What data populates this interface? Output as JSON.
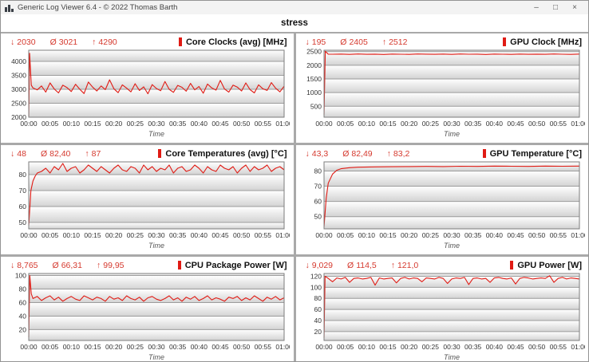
{
  "window": {
    "title": "Generic Log Viewer 6.4 - © 2022 Thomas Barth",
    "controls": {
      "minimize": "–",
      "maximize": "□",
      "close": "×"
    }
  },
  "tab": {
    "label": "stress"
  },
  "symbols": {
    "min": "↓",
    "avg": "Ø",
    "max": "↑"
  },
  "colors": {
    "accent_red": "#d5392e",
    "line_red": "#e01b14",
    "grid_line": "#9c9c9c",
    "band_top": "#ffffff",
    "band_bottom": "#d3d3d3",
    "divider": "#a9a9a9",
    "plot_border": "#7d7d7d"
  },
  "x_axis": {
    "tick_minutes": [
      0,
      5,
      10,
      15,
      20,
      25,
      30,
      35,
      40,
      45,
      50,
      55,
      60
    ],
    "tick_labels": [
      "00:00",
      "00:05",
      "00:10",
      "00:15",
      "00:20",
      "00:25",
      "00:30",
      "00:35",
      "00:40",
      "00:45",
      "00:50",
      "00:55",
      "01:00"
    ],
    "title": "Time"
  },
  "panels": [
    {
      "id": "core-clocks",
      "title": "Core Clocks (avg) [MHz]",
      "stats": {
        "min": "2030",
        "avg": "3021",
        "max": "4290"
      },
      "chart_data": {
        "type": "line",
        "ylim": [
          2000,
          4400
        ],
        "yticks": [
          2000,
          2500,
          3000,
          3500,
          4000
        ],
        "ytick_labels": [
          "2000",
          "2500",
          "3000",
          "3500",
          "4000"
        ],
        "x_minutes": [
          0,
          0.2,
          0.6,
          1,
          2,
          3,
          4,
          5,
          6,
          7,
          8,
          9,
          10,
          11,
          12,
          13,
          14,
          15,
          16,
          17,
          18,
          19,
          20,
          21,
          22,
          23,
          24,
          25,
          26,
          27,
          28,
          29,
          30,
          31,
          32,
          33,
          34,
          35,
          36,
          37,
          38,
          39,
          40,
          41,
          42,
          43,
          44,
          45,
          46,
          47,
          48,
          49,
          50,
          51,
          52,
          53,
          54,
          55,
          56,
          57,
          58,
          59,
          60
        ],
        "y": [
          2030,
          4290,
          3150,
          3050,
          2980,
          3120,
          2900,
          3230,
          3010,
          2870,
          3150,
          3060,
          2920,
          3180,
          3000,
          2850,
          3260,
          3080,
          2940,
          3120,
          2990,
          3340,
          3020,
          2880,
          3160,
          3040,
          2910,
          3200,
          2960,
          3090,
          2840,
          3170,
          3030,
          2950,
          3280,
          3000,
          2890,
          3140,
          3070,
          2930,
          3210,
          2980,
          3100,
          2860,
          3190,
          3050,
          2970,
          3320,
          3010,
          2900,
          3150,
          3080,
          2940,
          3230,
          2990,
          2870,
          3160,
          3020,
          2960,
          3240,
          3040,
          2910,
          3110
        ]
      }
    },
    {
      "id": "gpu-clock",
      "title": "GPU Clock [MHz]",
      "stats": {
        "min": "195",
        "avg": "2405",
        "max": "2512"
      },
      "chart_data": {
        "type": "line",
        "ylim": [
          100,
          2550
        ],
        "yticks": [
          500,
          1000,
          1500,
          2000,
          2500
        ],
        "ytick_labels": [
          "500",
          "1000",
          "1500",
          "2000",
          "2500"
        ],
        "x_minutes": [
          0,
          0.3,
          1,
          2,
          4,
          6,
          8,
          10,
          12,
          14,
          16,
          18,
          20,
          22,
          24,
          26,
          28,
          30,
          32,
          34,
          36,
          38,
          40,
          42,
          44,
          46,
          48,
          50,
          52,
          54,
          56,
          58,
          60
        ],
        "y": [
          195,
          2512,
          2405,
          2405,
          2410,
          2398,
          2412,
          2402,
          2408,
          2396,
          2411,
          2404,
          2399,
          2413,
          2406,
          2400,
          2409,
          2397,
          2412,
          2403,
          2407,
          2395,
          2410,
          2405,
          2398,
          2411,
          2402,
          2408,
          2400,
          2412,
          2404,
          2397,
          2409
        ]
      }
    },
    {
      "id": "core-temps",
      "title": "Core Temperatures (avg) [°C]",
      "stats": {
        "min": "48",
        "avg": "82,40",
        "max": "87"
      },
      "chart_data": {
        "type": "line",
        "ylim": [
          46,
          88
        ],
        "yticks": [
          50,
          60,
          70,
          80
        ],
        "ytick_labels": [
          "50",
          "60",
          "70",
          "80"
        ],
        "x_minutes": [
          0,
          0.5,
          1,
          1.5,
          2,
          3,
          4,
          5,
          6,
          7,
          8,
          9,
          10,
          11,
          12,
          13,
          14,
          15,
          16,
          17,
          18,
          19,
          20,
          21,
          22,
          23,
          24,
          25,
          26,
          27,
          28,
          29,
          30,
          31,
          32,
          33,
          34,
          35,
          36,
          37,
          38,
          39,
          40,
          41,
          42,
          43,
          44,
          45,
          46,
          47,
          48,
          49,
          50,
          51,
          52,
          53,
          54,
          55,
          56,
          57,
          58,
          59,
          60
        ],
        "y": [
          48,
          70,
          76,
          79,
          81,
          82,
          84,
          81,
          85,
          83,
          87,
          82,
          84,
          85,
          81,
          83,
          86,
          84,
          82,
          85,
          83,
          81,
          84,
          86,
          83,
          82,
          85,
          84,
          81,
          86,
          83,
          85,
          82,
          84,
          83,
          86,
          81,
          84,
          85,
          82,
          83,
          86,
          84,
          81,
          85,
          83,
          82,
          86,
          84,
          83,
          85,
          81,
          84,
          86,
          82,
          85,
          83,
          84,
          86,
          82,
          84,
          85,
          83
        ]
      }
    },
    {
      "id": "gpu-temp",
      "title": "GPU Temperature [°C]",
      "stats": {
        "min": "43,3",
        "avg": "82,49",
        "max": "83,2"
      },
      "chart_data": {
        "type": "line",
        "ylim": [
          42,
          86
        ],
        "yticks": [
          50,
          60,
          70,
          80
        ],
        "ytick_labels": [
          "50",
          "60",
          "70",
          "80"
        ],
        "x_minutes": [
          0,
          0.5,
          1,
          2,
          3,
          4,
          6,
          8,
          12,
          16,
          20,
          24,
          28,
          32,
          36,
          40,
          44,
          48,
          52,
          56,
          60
        ],
        "y": [
          43.3,
          62,
          72,
          78,
          80.5,
          81.5,
          82.2,
          82.5,
          82.7,
          82.8,
          82.9,
          83.0,
          82.9,
          83.1,
          83.0,
          83.2,
          83.1,
          83.0,
          83.2,
          83.1,
          83.2
        ]
      }
    },
    {
      "id": "cpu-package-power",
      "title": "CPU Package Power [W]",
      "stats": {
        "min": "8,765",
        "avg": "66,31",
        "max": "99,95"
      },
      "chart_data": {
        "type": "line",
        "ylim": [
          4,
          103
        ],
        "yticks": [
          20,
          40,
          60,
          80,
          100
        ],
        "ytick_labels": [
          "20",
          "40",
          "60",
          "80",
          "100"
        ],
        "x_minutes": [
          0,
          0.25,
          0.6,
          1,
          2,
          3,
          4,
          5,
          6,
          7,
          8,
          9,
          10,
          11,
          12,
          13,
          14,
          15,
          16,
          17,
          18,
          19,
          20,
          21,
          22,
          23,
          24,
          25,
          26,
          27,
          28,
          29,
          30,
          31,
          32,
          33,
          34,
          35,
          36,
          37,
          38,
          39,
          40,
          41,
          42,
          43,
          44,
          45,
          46,
          47,
          48,
          49,
          50,
          51,
          52,
          53,
          54,
          55,
          56,
          57,
          58,
          59,
          60
        ],
        "y": [
          8.765,
          99.95,
          73,
          66,
          69,
          63,
          67,
          70,
          64,
          68,
          62,
          66,
          69,
          65,
          63,
          70,
          67,
          64,
          68,
          66,
          62,
          69,
          65,
          67,
          63,
          70,
          66,
          64,
          68,
          62,
          67,
          69,
          65,
          63,
          66,
          70,
          64,
          67,
          62,
          68,
          65,
          69,
          63,
          66,
          70,
          64,
          67,
          65,
          62,
          68,
          66,
          69,
          63,
          67,
          64,
          70,
          66,
          62,
          68,
          65,
          69,
          64,
          67
        ]
      }
    },
    {
      "id": "gpu-power",
      "title": "GPU Power [W]",
      "stats": {
        "min": "9,029",
        "avg": "114,5",
        "max": "121,0"
      },
      "chart_data": {
        "type": "line",
        "ylim": [
          4,
          125
        ],
        "yticks": [
          20,
          40,
          60,
          80,
          100,
          120
        ],
        "ytick_labels": [
          "20",
          "40",
          "60",
          "80",
          "100",
          "120"
        ],
        "x_minutes": [
          0,
          0.25,
          1,
          2,
          3,
          4,
          5,
          6,
          7,
          8,
          9,
          10,
          11,
          12,
          13,
          14,
          15,
          16,
          17,
          18,
          19,
          20,
          21,
          22,
          23,
          24,
          25,
          26,
          27,
          28,
          29,
          30,
          31,
          32,
          33,
          34,
          35,
          36,
          37,
          38,
          39,
          40,
          41,
          42,
          43,
          44,
          45,
          46,
          47,
          48,
          49,
          50,
          51,
          52,
          53,
          54,
          55,
          56,
          57,
          58,
          59,
          60
        ],
        "y": [
          9.029,
          120,
          116,
          110,
          117,
          115,
          118,
          109,
          116,
          117,
          115,
          116,
          118,
          104,
          117,
          115,
          116,
          117,
          108,
          116,
          118,
          115,
          117,
          116,
          110,
          117,
          116,
          115,
          118,
          116,
          107,
          115,
          117,
          116,
          118,
          105,
          116,
          117,
          115,
          116,
          109,
          117,
          118,
          116,
          115,
          117,
          106,
          116,
          118,
          117,
          115,
          116,
          117,
          116,
          121,
          109,
          116,
          118,
          115,
          117,
          116,
          115
        ]
      }
    }
  ]
}
